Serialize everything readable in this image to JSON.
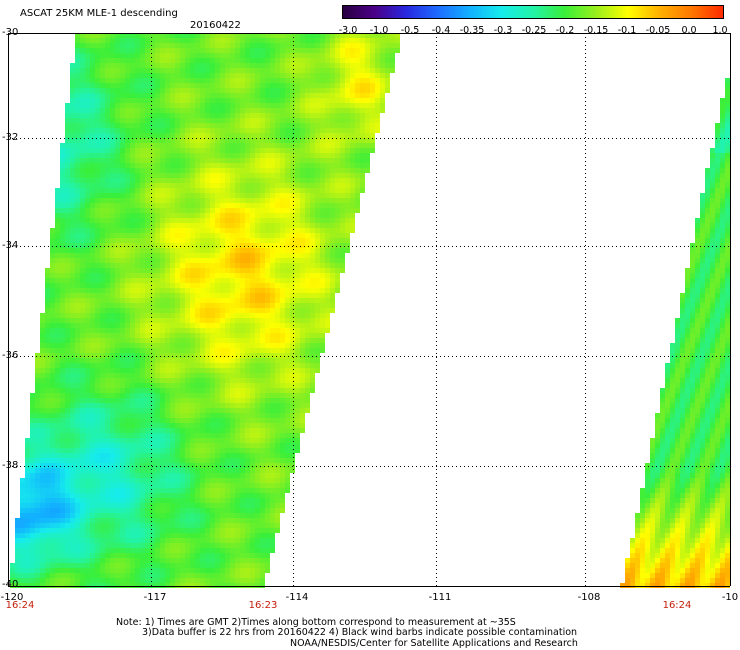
{
  "header": {
    "title": "ASCAT 25KM MLE-1 descending",
    "date": "20160422"
  },
  "colorbar": {
    "colors": [
      "#2a0040",
      "#4a0088",
      "#2828e0",
      "#1e6cff",
      "#12b0ff",
      "#16ecec",
      "#22f3a8",
      "#3aef3a",
      "#9aef1c",
      "#ffff00",
      "#ffb000",
      "#ff7800",
      "#ff2a00"
    ],
    "ticks": [
      "-3.0",
      "-1.0",
      "-0.5",
      "-0.4",
      "-0.35",
      "-0.3",
      "-0.25",
      "-0.2",
      "-0.15",
      "-0.1",
      "-0.05",
      "0.0",
      "1.0"
    ]
  },
  "axes": {
    "y_labels": [
      "-30",
      "-32",
      "-34",
      "-36",
      "-38",
      "-40"
    ],
    "x_labels": [
      "-120",
      "-117",
      "-114",
      "-111",
      "-108",
      "-10"
    ],
    "lat_range": [
      -40,
      -30
    ],
    "lon_range": [
      -120,
      -105
    ],
    "grid": "dotted"
  },
  "swath_times": [
    "16:24",
    "16:23",
    "16:24"
  ],
  "notes": [
    "Note: 1) Times are GMT 2)Times along bottom correspond to measurement at ~35S",
    "3)Data buffer is 22 hrs from 20160422 4) Black wind barbs indicate possible contamination",
    "NOAA/NESDIS/Center for Satellite Applications and Research"
  ]
}
